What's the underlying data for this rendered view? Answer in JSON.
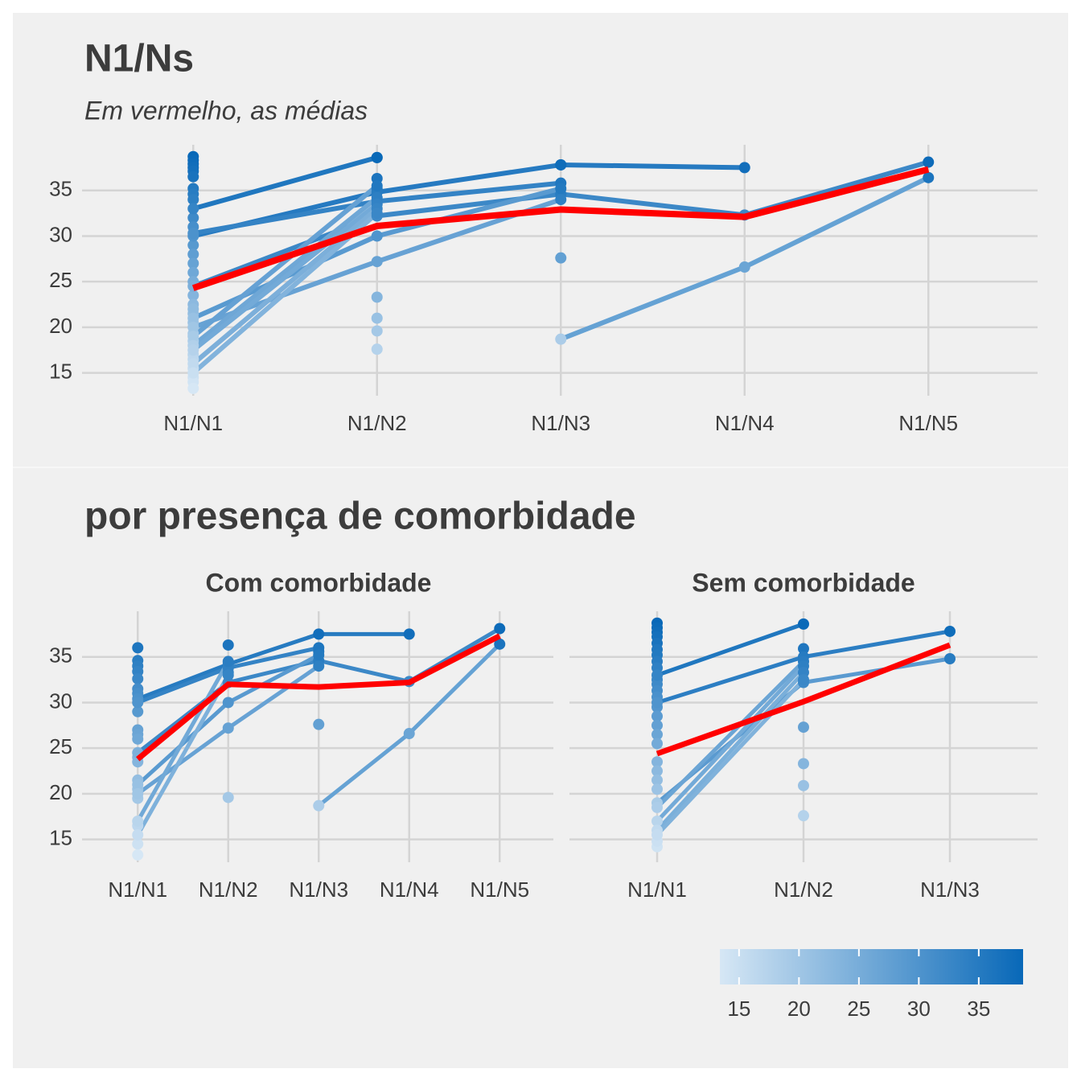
{
  "chart_data": [
    {
      "type": "line",
      "title": "N1/Ns",
      "subtitle": "Em vermelho, as médias",
      "categories": [
        "N1/N1",
        "N1/N2",
        "N1/N3",
        "N1/N4",
        "N1/N5"
      ],
      "ylim": [
        12.5,
        40
      ],
      "yticks": [
        15,
        20,
        25,
        30,
        35
      ],
      "grid": true,
      "series": [
        {
          "values": [
            33.0,
            38.6,
            null,
            null,
            null
          ]
        },
        {
          "values": [
            30.0,
            34.8,
            37.8,
            37.5,
            null
          ]
        },
        {
          "values": [
            30.3,
            33.8,
            35.8,
            null,
            null
          ]
        },
        {
          "values": [
            24.5,
            32.2,
            34.6,
            32.3,
            38.1
          ]
        },
        {
          "values": [
            21.0,
            30.0,
            35.2,
            null,
            null
          ]
        },
        {
          "values": [
            20.0,
            27.2,
            34.0,
            null,
            null
          ]
        },
        {
          "values": [
            19.0,
            35.5,
            null,
            null,
            null
          ]
        },
        {
          "values": [
            18.0,
            34.2,
            null,
            null,
            null
          ]
        },
        {
          "values": [
            17.5,
            33.5,
            null,
            null,
            null
          ]
        },
        {
          "values": [
            16.0,
            33.0,
            null,
            null,
            null
          ]
        },
        {
          "values": [
            15.0,
            32.5,
            null,
            null,
            null
          ]
        },
        {
          "values": [
            null,
            null,
            18.7,
            26.6,
            36.4
          ]
        }
      ],
      "points": {
        "x": [
          "N1/N1",
          "N1/N1",
          "N1/N1",
          "N1/N1",
          "N1/N1",
          "N1/N1",
          "N1/N1",
          "N1/N1",
          "N1/N1",
          "N1/N1",
          "N1/N1",
          "N1/N1",
          "N1/N1",
          "N1/N1",
          "N1/N1",
          "N1/N1",
          "N1/N1",
          "N1/N1",
          "N1/N1",
          "N1/N1",
          "N1/N1",
          "N1/N1",
          "N1/N1",
          "N1/N1",
          "N1/N1",
          "N1/N1",
          "N1/N1",
          "N1/N1",
          "N1/N1",
          "N1/N2",
          "N1/N2",
          "N1/N2",
          "N1/N2",
          "N1/N2",
          "N1/N2",
          "N1/N2",
          "N1/N3",
          "N1/N3"
        ],
        "y": [
          38.7,
          38.3,
          37.9,
          37.5,
          37.1,
          36.5,
          35.2,
          34.6,
          34.0,
          32.0,
          31.0,
          29.0,
          28.0,
          27.0,
          26.0,
          25.0,
          23.5,
          22.5,
          21.5,
          20.5,
          19.3,
          18.5,
          17.0,
          16.5,
          15.5,
          14.5,
          14.0,
          13.3,
          22.0,
          38.6,
          36.3,
          35.2,
          23.3,
          21.0,
          19.6,
          17.6,
          37.8,
          27.6
        ]
      },
      "means": {
        "color": "#ff0000",
        "values": [
          24.3,
          31.1,
          32.9,
          32.1,
          37.3
        ]
      }
    },
    {
      "type": "line",
      "title": "Com comorbidade",
      "categories": [
        "N1/N1",
        "N1/N2",
        "N1/N3",
        "N1/N4",
        "N1/N5"
      ],
      "ylim": [
        12.5,
        40
      ],
      "yticks": [
        15,
        20,
        25,
        30,
        35
      ],
      "grid": true,
      "series": [
        {
          "values": [
            30.4,
            34.2,
            37.5,
            37.5,
            null
          ]
        },
        {
          "values": [
            30.0,
            33.8,
            36.0,
            null,
            null
          ]
        },
        {
          "values": [
            24.5,
            32.2,
            34.6,
            32.3,
            38.1
          ]
        },
        {
          "values": [
            21.0,
            30.0,
            35.2,
            null,
            null
          ]
        },
        {
          "values": [
            20.0,
            27.2,
            34.0,
            null,
            null
          ]
        },
        {
          "values": [
            17.0,
            34.5,
            null,
            null,
            null
          ]
        },
        {
          "values": [
            15.5,
            33.0,
            null,
            null,
            null
          ]
        },
        {
          "values": [
            null,
            null,
            18.7,
            26.6,
            36.4
          ]
        }
      ],
      "points": {
        "x": [
          "N1/N1",
          "N1/N1",
          "N1/N1",
          "N1/N1",
          "N1/N1",
          "N1/N1",
          "N1/N1",
          "N1/N1",
          "N1/N1",
          "N1/N1",
          "N1/N1",
          "N1/N1",
          "N1/N1",
          "N1/N1",
          "N1/N1",
          "N1/N1",
          "N1/N1",
          "N1/N1",
          "N1/N1",
          "N1/N2",
          "N1/N2",
          "N1/N2",
          "N1/N3",
          "N1/N3"
        ],
        "y": [
          36.0,
          34.6,
          34.0,
          33.4,
          32.6,
          31.5,
          31.0,
          29.0,
          27.0,
          26.5,
          26.0,
          24.0,
          23.5,
          21.5,
          20.5,
          19.5,
          16.5,
          14.5,
          13.3,
          36.3,
          33.3,
          19.6,
          35.6,
          27.6
        ]
      },
      "means": {
        "color": "#ff0000",
        "values": [
          23.8,
          32.0,
          31.7,
          32.2,
          37.3
        ]
      }
    },
    {
      "type": "line",
      "title": "Sem comorbidade",
      "categories": [
        "N1/N1",
        "N1/N2",
        "N1/N3"
      ],
      "ylim": [
        12.5,
        40
      ],
      "yticks": [
        15,
        20,
        25,
        30,
        35
      ],
      "grid": true,
      "series": [
        {
          "values": [
            33.0,
            38.6,
            null
          ]
        },
        {
          "values": [
            30.0,
            35.0,
            37.8
          ]
        },
        {
          "values": [
            19.0,
            32.2,
            34.8
          ]
        },
        {
          "values": [
            18.5,
            34.5,
            null
          ]
        },
        {
          "values": [
            17.0,
            34.0,
            null
          ]
        },
        {
          "values": [
            16.0,
            33.3,
            null
          ]
        },
        {
          "values": [
            15.5,
            32.5,
            null
          ]
        }
      ],
      "points": {
        "x": [
          "N1/N1",
          "N1/N1",
          "N1/N1",
          "N1/N1",
          "N1/N1",
          "N1/N1",
          "N1/N1",
          "N1/N1",
          "N1/N1",
          "N1/N1",
          "N1/N1",
          "N1/N1",
          "N1/N1",
          "N1/N1",
          "N1/N1",
          "N1/N1",
          "N1/N1",
          "N1/N1",
          "N1/N1",
          "N1/N1",
          "N1/N1",
          "N1/N1",
          "N1/N1",
          "N1/N1",
          "N1/N2",
          "N1/N2",
          "N1/N2",
          "N1/N2",
          "N1/N2"
        ],
        "y": [
          38.7,
          38.2,
          37.7,
          37.2,
          36.5,
          35.8,
          35.2,
          34.5,
          33.8,
          32.5,
          32.0,
          31.3,
          30.6,
          29.5,
          28.5,
          27.5,
          26.5,
          25.5,
          23.5,
          22.5,
          21.5,
          20.5,
          14.2,
          14.8,
          35.9,
          27.3,
          23.3,
          20.9,
          17.6
        ]
      },
      "means": {
        "color": "#ff0000",
        "values": [
          24.4,
          30.1,
          36.3
        ]
      }
    }
  ],
  "section_title": "por presença de comorbidade",
  "colorbar": {
    "low": "#d6e7f5",
    "high": "#0868b8",
    "lim": [
      13.4,
      38.7
    ],
    "ticks": [
      15,
      20,
      25,
      30,
      35
    ]
  }
}
